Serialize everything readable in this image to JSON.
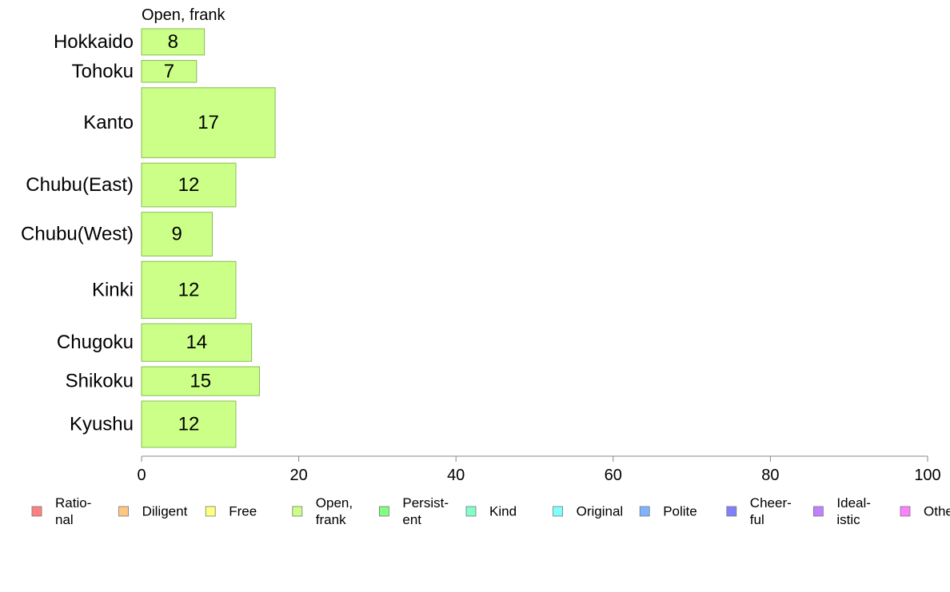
{
  "chart_data": {
    "type": "bar",
    "orientation": "horizontal",
    "title": "Open, frank",
    "categories": [
      "Hokkaido",
      "Tohoku",
      "Kanto",
      "Chubu(East)",
      "Chubu(West)",
      "Kinki",
      "Chugoku",
      "Shikoku",
      "Kyushu"
    ],
    "values": [
      8,
      7,
      17,
      12,
      9,
      12,
      14,
      15,
      12
    ],
    "bar_widths_relative": [
      3,
      2.5,
      8,
      5,
      5,
      6.5,
      4.3,
      3.3,
      5.3
    ],
    "xlim": [
      0,
      100
    ],
    "xticks": [
      "0",
      "20",
      "40",
      "60",
      "80",
      "100"
    ],
    "xlabel": "",
    "ylabel": "",
    "grid": false,
    "legend_position": "bottom",
    "bar_color": "#CCFF88",
    "bar_stroke": "#88BB55",
    "axis_color": "#888888",
    "legend": [
      {
        "lines": [
          "Ratio-",
          "nal"
        ],
        "color": "#FF8080"
      },
      {
        "lines": [
          "Diligent"
        ],
        "color": "#FFC680"
      },
      {
        "lines": [
          "Free"
        ],
        "color": "#FFFF80"
      },
      {
        "lines": [
          "Open,",
          "frank"
        ],
        "color": "#CCFF88"
      },
      {
        "lines": [
          "Persist-",
          "ent"
        ],
        "color": "#80FF80"
      },
      {
        "lines": [
          "Kind"
        ],
        "color": "#80FFC6"
      },
      {
        "lines": [
          "Original"
        ],
        "color": "#80FFFF"
      },
      {
        "lines": [
          "Polite"
        ],
        "color": "#80B3FF"
      },
      {
        "lines": [
          "Cheer-",
          "ful"
        ],
        "color": "#8080FF"
      },
      {
        "lines": [
          "Ideal-",
          "istic"
        ],
        "color": "#C080FF"
      },
      {
        "lines": [
          "Other"
        ],
        "color": "#FF80FF"
      }
    ]
  }
}
